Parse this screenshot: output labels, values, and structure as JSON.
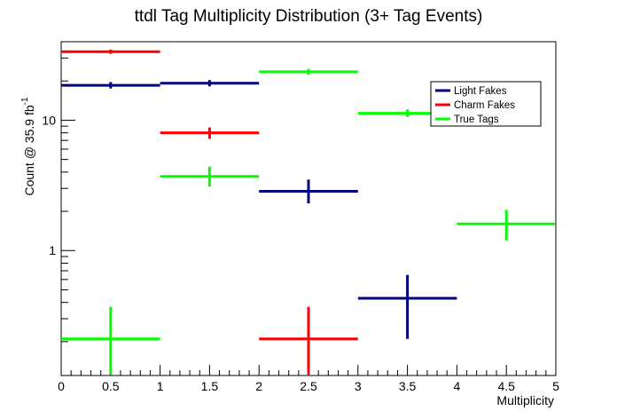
{
  "chart_data": {
    "type": "scatter",
    "title": "ttdl Tag Multiplicity Distribution (3+ Tag Events)",
    "xlabel": "Multiplicity",
    "ylabel_main": "Count @ 35.9 fb",
    "ylabel_sup": "-1",
    "xlim": [
      0,
      5
    ],
    "ylim": [
      0.11,
      40
    ],
    "yscale": "log",
    "x_ticks": [
      "0",
      "0.5",
      "1",
      "1.5",
      "2",
      "2.5",
      "3",
      "3.5",
      "4",
      "4.5",
      "5"
    ],
    "y_ticks": [
      {
        "value": 1,
        "label": "1"
      },
      {
        "value": 10,
        "label": "10"
      }
    ],
    "legend_position": "top-right",
    "series": [
      {
        "name": "Light Fakes",
        "color": "#000080",
        "points": [
          {
            "x": 0.5,
            "xlow": 0,
            "xhigh": 1,
            "y": 18.5,
            "ylow": 17.5,
            "yhigh": 19.6
          },
          {
            "x": 1.5,
            "xlow": 1,
            "xhigh": 2,
            "y": 19.2,
            "ylow": 18.2,
            "yhigh": 20.3
          },
          {
            "x": 2.5,
            "xlow": 2,
            "xhigh": 3,
            "y": 2.85,
            "ylow": 2.3,
            "yhigh": 3.5
          },
          {
            "x": 3.5,
            "xlow": 3,
            "xhigh": 4,
            "y": 0.43,
            "ylow": 0.21,
            "yhigh": 0.65
          }
        ]
      },
      {
        "name": "Charm Fakes",
        "color": "#ff0000",
        "points": [
          {
            "x": 0.5,
            "xlow": 0,
            "xhigh": 1,
            "y": 33.5,
            "ylow": 32.3,
            "yhigh": 34.8
          },
          {
            "x": 1.5,
            "xlow": 1,
            "xhigh": 2,
            "y": 8.0,
            "ylow": 7.2,
            "yhigh": 8.8
          },
          {
            "x": 2.5,
            "xlow": 2,
            "xhigh": 3,
            "y": 0.21,
            "ylow": 0.11,
            "yhigh": 0.37
          }
        ]
      },
      {
        "name": "True Tags",
        "color": "#00ff00",
        "points": [
          {
            "x": 0.5,
            "xlow": 0,
            "xhigh": 1,
            "y": 0.21,
            "ylow": 0.11,
            "yhigh": 0.37
          },
          {
            "x": 1.5,
            "xlow": 1,
            "xhigh": 2,
            "y": 3.7,
            "ylow": 3.1,
            "yhigh": 4.4
          },
          {
            "x": 2.5,
            "xlow": 2,
            "xhigh": 3,
            "y": 23.5,
            "ylow": 22.3,
            "yhigh": 24.7
          },
          {
            "x": 3.5,
            "xlow": 3,
            "xhigh": 4,
            "y": 11.3,
            "ylow": 10.6,
            "yhigh": 12.1
          },
          {
            "x": 4.5,
            "xlow": 4,
            "xhigh": 5,
            "y": 1.6,
            "ylow": 1.2,
            "yhigh": 2.05
          }
        ]
      }
    ]
  }
}
